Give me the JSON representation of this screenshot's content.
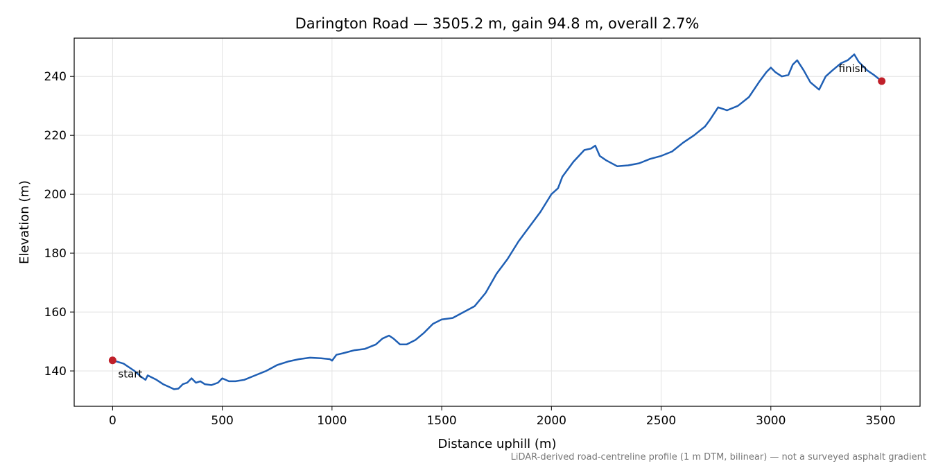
{
  "chart_data": {
    "type": "line",
    "title": "Darington Road — 3505.2 m, gain 94.8 m, overall 2.7%",
    "xlabel": "Distance uphill (m)",
    "ylabel": "Elevation (m)",
    "xlim": [
      -175,
      3680
    ],
    "ylim": [
      128,
      253
    ],
    "xticks": [
      0,
      500,
      1000,
      1500,
      2000,
      2500,
      3000,
      3500
    ],
    "yticks": [
      140,
      160,
      180,
      200,
      220,
      240
    ],
    "xtick_labels": [
      "0",
      "500",
      "1000",
      "1500",
      "2000",
      "2500",
      "3000",
      "3500"
    ],
    "ytick_labels": [
      "140",
      "160",
      "180",
      "200",
      "220",
      "240"
    ],
    "grid": true,
    "line_color": "#1f5fb4",
    "marker_color": "#c0202a",
    "series": [
      {
        "x": [
          0,
          50,
          100,
          130,
          150,
          160,
          200,
          230,
          260,
          280,
          300,
          320,
          340,
          360,
          380,
          400,
          420,
          450,
          480,
          500,
          530,
          560,
          600,
          650,
          700,
          750,
          800,
          850,
          900,
          950,
          990,
          1000,
          1020,
          1050,
          1100,
          1150,
          1200,
          1230,
          1260,
          1280,
          1310,
          1340,
          1380,
          1420,
          1460,
          1500,
          1550,
          1600,
          1650,
          1700,
          1750,
          1800,
          1850,
          1900,
          1950,
          2000,
          2030,
          2050,
          2100,
          2150,
          2180,
          2200,
          2220,
          2250,
          2300,
          2350,
          2400,
          2450,
          2500,
          2550,
          2600,
          2650,
          2700,
          2720,
          2760,
          2800,
          2850,
          2900,
          2950,
          2980,
          3000,
          3020,
          3050,
          3080,
          3100,
          3120,
          3150,
          3180,
          3220,
          3250,
          3280,
          3320,
          3350,
          3380,
          3400,
          3440,
          3470,
          3505.2
        ],
        "y": [
          143.6,
          142.5,
          140,
          138,
          137,
          138.5,
          137,
          135.5,
          134.5,
          133.8,
          134,
          135.5,
          136,
          137.5,
          136,
          136.5,
          135.5,
          135.2,
          136,
          137.5,
          136.5,
          136.5,
          137,
          138.5,
          140,
          142,
          143.2,
          144,
          144.5,
          144.3,
          144,
          143.5,
          145.5,
          146,
          147,
          147.5,
          149,
          151,
          152,
          151,
          149,
          149,
          150.5,
          153,
          156,
          157.5,
          158,
          160,
          162,
          166.5,
          173,
          178,
          184,
          189,
          194,
          200,
          202,
          206,
          211,
          215,
          215.5,
          216.5,
          213,
          211.5,
          209.5,
          209.8,
          210.5,
          212,
          213,
          214.5,
          217.5,
          220,
          223,
          225,
          229.5,
          228.5,
          230,
          233,
          238.5,
          241.5,
          243,
          241.5,
          240,
          240.5,
          244,
          245.5,
          242,
          238,
          235.5,
          240,
          242,
          244.5,
          245.5,
          247.5,
          245,
          242,
          240.5,
          238.4
        ]
      }
    ],
    "annotations": [
      {
        "text": "start",
        "x": 0,
        "y": 143.6
      },
      {
        "text": "finish",
        "x": 3505.2,
        "y": 238.4
      }
    ]
  },
  "footnote": "LiDAR-derived road-centreline profile (1 m DTM, bilinear) — not a surveyed asphalt gradient"
}
